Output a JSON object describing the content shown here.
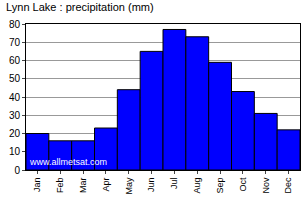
{
  "chart_data": {
    "type": "bar",
    "title": "Lynn Lake : precipitation (mm)",
    "categories": [
      "Jan",
      "Feb",
      "Mar",
      "Apr",
      "May",
      "Jun",
      "Jul",
      "Aug",
      "Sep",
      "Oct",
      "Nov",
      "Dec"
    ],
    "values": [
      20,
      16,
      16,
      23,
      44,
      65,
      77,
      73,
      59,
      43,
      31,
      22
    ],
    "color": "#0000ff",
    "ylim": [
      0,
      80
    ],
    "yticks": [
      0,
      10,
      20,
      30,
      40,
      50,
      60,
      70,
      80
    ],
    "grid": true,
    "annotation": "www.allmetsat.com"
  }
}
